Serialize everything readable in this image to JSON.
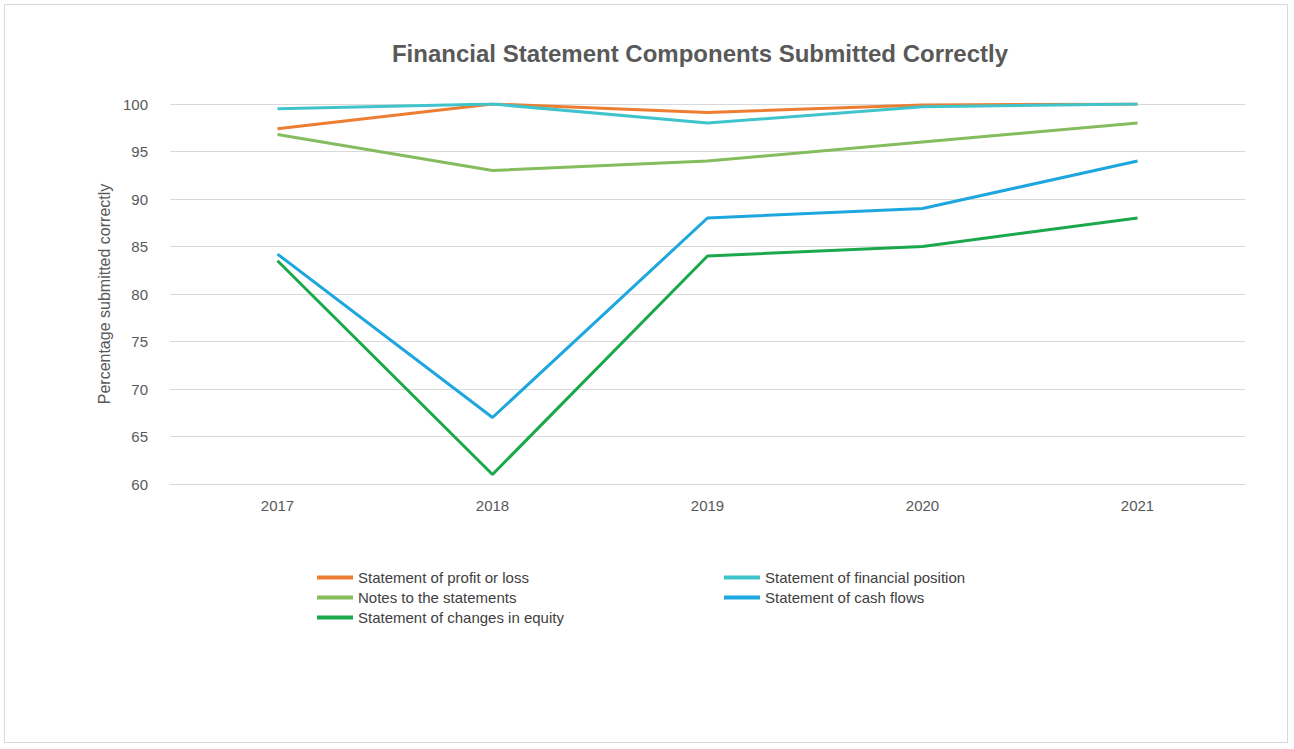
{
  "chart_data": {
    "type": "line",
    "title": "Financial Statement Components Submitted Correctly",
    "y_label": "Percentage submitted correctly",
    "categories": [
      "2017",
      "2018",
      "2019",
      "2020",
      "2021"
    ],
    "series": [
      {
        "name": "Statement of profit or loss",
        "color": "#ED7D31",
        "values": [
          97.4,
          100,
          99.1,
          99.9,
          100
        ]
      },
      {
        "name": "Statement of financial position",
        "color": "#40C4CC",
        "values": [
          99.5,
          100,
          98,
          99.7,
          100
        ]
      },
      {
        "name": "Notes to the statements",
        "color": "#84BC5E",
        "values": [
          96.8,
          93,
          94,
          96,
          98
        ]
      },
      {
        "name": "Statement of cash flows",
        "color": "#1DA7DE",
        "values": [
          84.2,
          67,
          88,
          89,
          94
        ]
      },
      {
        "name": "Statement of changes in equity",
        "color": "#1BA84A",
        "values": [
          83.5,
          61,
          84,
          85,
          88
        ]
      }
    ],
    "ylim": [
      60,
      100
    ],
    "yticks": [
      60,
      65,
      70,
      75,
      80,
      85,
      90,
      95,
      100
    ],
    "grid": true,
    "legend": "bottom"
  }
}
